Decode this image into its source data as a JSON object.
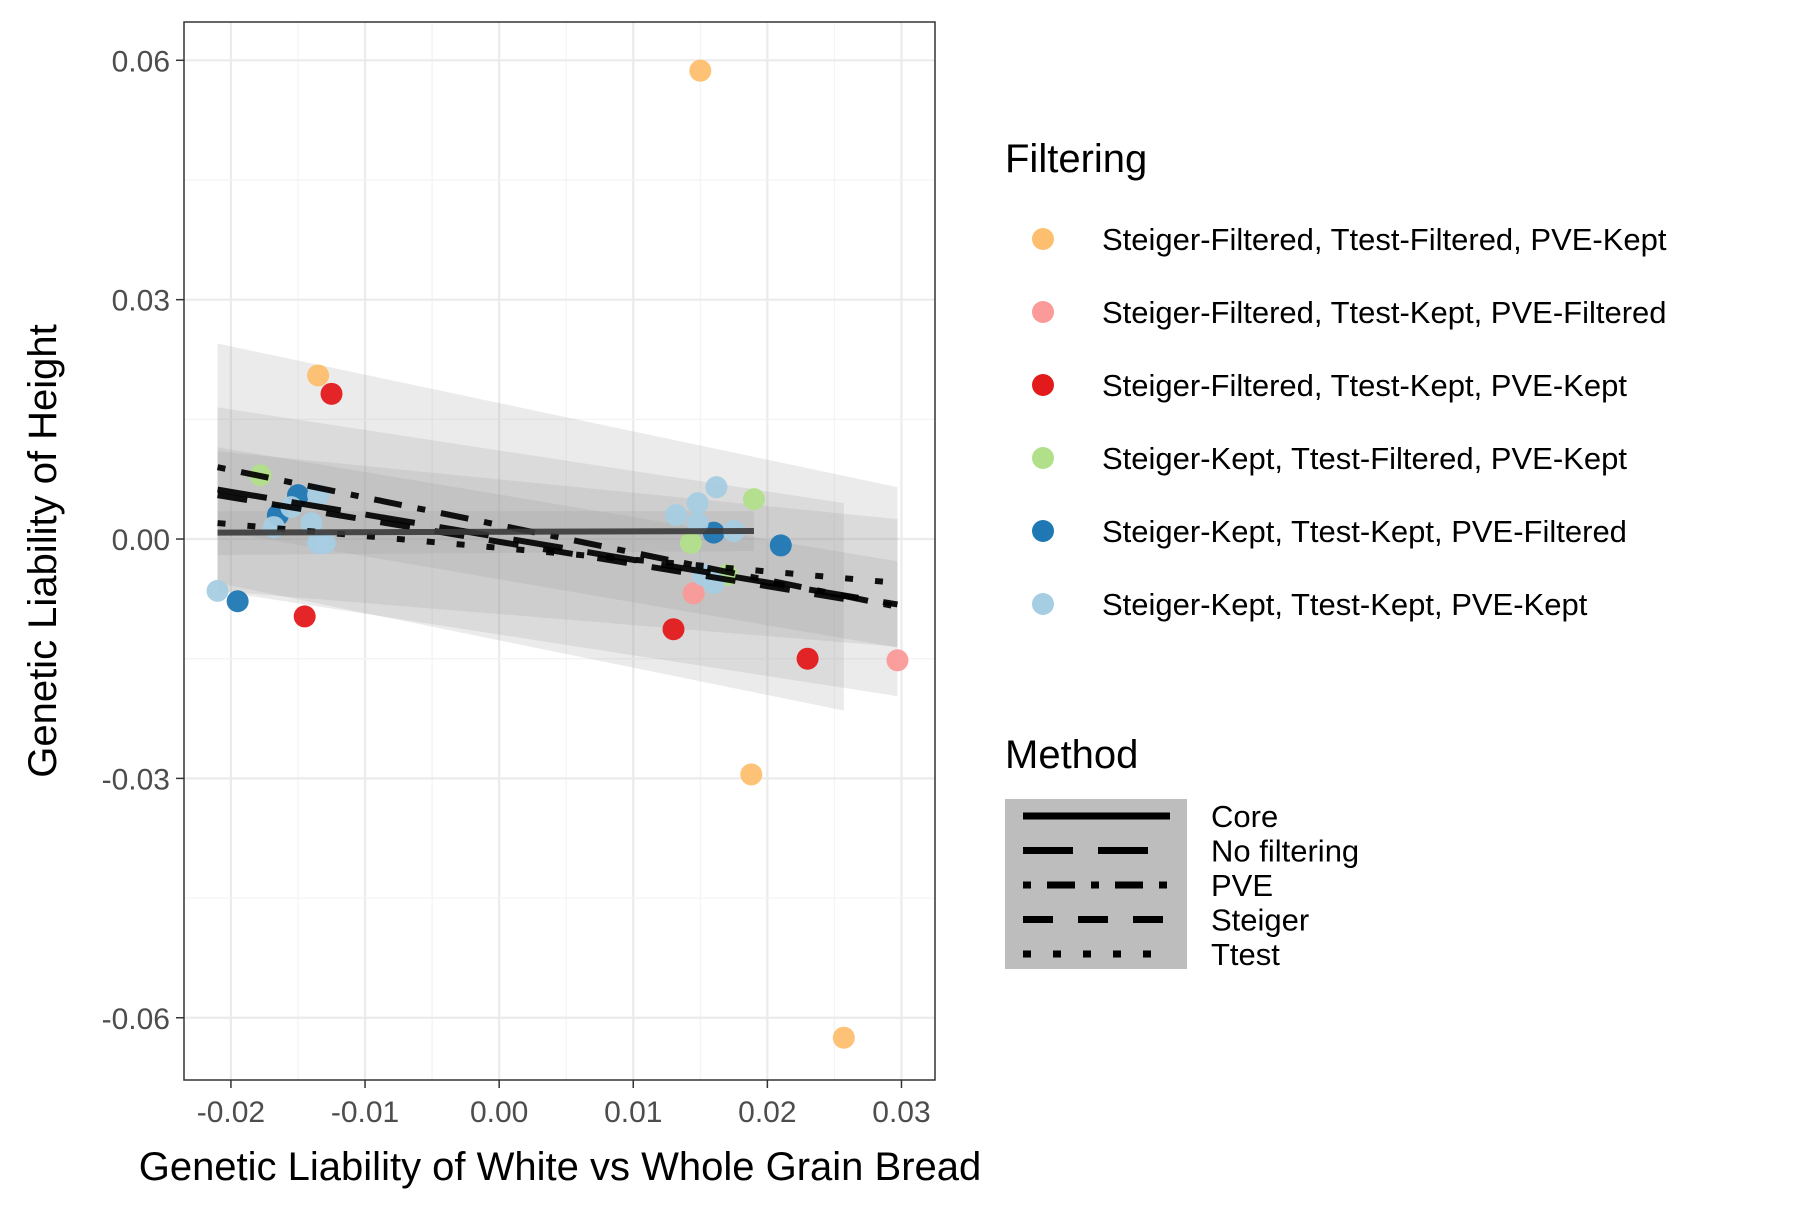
{
  "chart_data": {
    "type": "scatter",
    "xlabel": "Genetic Liability of White vs Whole Grain Bread",
    "ylabel": "Genetic Liability of Height",
    "xlim": [
      -0.0235,
      0.0325
    ],
    "ylim": [
      -0.0678,
      0.0648
    ],
    "x_ticks": [
      -0.02,
      -0.01,
      0.0,
      0.01,
      0.02,
      0.03
    ],
    "x_tick_labels": [
      "-0.02",
      "-0.01",
      "0.00",
      "0.01",
      "0.02",
      "0.03"
    ],
    "y_ticks": [
      -0.06,
      -0.03,
      0.0,
      0.03,
      0.06
    ],
    "y_tick_labels": [
      "-0.06",
      "-0.03",
      "0.00",
      "0.03",
      "0.06"
    ],
    "grid": true,
    "legend_position": "right",
    "filtering_legend": {
      "title": "Filtering",
      "entries": [
        {
          "label": "Steiger-Filtered, Ttest-Filtered, PVE-Kept",
          "color": "#FDBF6F"
        },
        {
          "label": "Steiger-Filtered, Ttest-Kept, PVE-Filtered",
          "color": "#FB9A99"
        },
        {
          "label": "Steiger-Filtered, Ttest-Kept, PVE-Kept",
          "color": "#E31A1C"
        },
        {
          "label": "Steiger-Kept, Ttest-Filtered, PVE-Kept",
          "color": "#B2DF8A"
        },
        {
          "label": "Steiger-Kept, Ttest-Kept, PVE-Filtered",
          "color": "#1F78B4"
        },
        {
          "label": "Steiger-Kept, Ttest-Kept, PVE-Kept",
          "color": "#A6CEE3"
        }
      ]
    },
    "method_legend": {
      "title": "Method",
      "entries": [
        {
          "label": "Core",
          "dash": "solid"
        },
        {
          "label": "No filtering",
          "dash": "longdash"
        },
        {
          "label": "PVE",
          "dash": "dotdash"
        },
        {
          "label": "Steiger",
          "dash": "dashed"
        },
        {
          "label": "Ttest",
          "dash": "dotted"
        }
      ]
    },
    "points": [
      {
        "x": 0.015,
        "y": 0.0587,
        "group": 0
      },
      {
        "x": -0.0135,
        "y": 0.0205,
        "group": 0
      },
      {
        "x": 0.0188,
        "y": -0.0295,
        "group": 0
      },
      {
        "x": 0.0257,
        "y": -0.0625,
        "group": 0
      },
      {
        "x": 0.0145,
        "y": -0.0068,
        "group": 1
      },
      {
        "x": 0.0297,
        "y": -0.0152,
        "group": 1
      },
      {
        "x": -0.0125,
        "y": 0.0182,
        "group": 2
      },
      {
        "x": -0.0145,
        "y": -0.0097,
        "group": 2
      },
      {
        "x": 0.013,
        "y": -0.0113,
        "group": 2
      },
      {
        "x": 0.023,
        "y": -0.015,
        "group": 2
      },
      {
        "x": -0.0178,
        "y": 0.008,
        "group": 3
      },
      {
        "x": 0.019,
        "y": 0.005,
        "group": 3
      },
      {
        "x": 0.0143,
        "y": -0.0005,
        "group": 3
      },
      {
        "x": 0.017,
        "y": -0.0045,
        "group": 3
      },
      {
        "x": -0.0195,
        "y": -0.0078,
        "group": 4
      },
      {
        "x": -0.015,
        "y": 0.0055,
        "group": 4
      },
      {
        "x": -0.0165,
        "y": 0.003,
        "group": 4
      },
      {
        "x": 0.021,
        "y": -0.0008,
        "group": 4
      },
      {
        "x": 0.016,
        "y": 0.0008,
        "group": 4
      },
      {
        "x": -0.021,
        "y": -0.0065,
        "group": 5
      },
      {
        "x": -0.0135,
        "y": 0.0055,
        "group": 5
      },
      {
        "x": -0.0155,
        "y": 0.004,
        "group": 5
      },
      {
        "x": -0.0168,
        "y": 0.0015,
        "group": 5
      },
      {
        "x": -0.014,
        "y": 0.002,
        "group": 5
      },
      {
        "x": -0.0135,
        "y": -0.0005,
        "group": 5
      },
      {
        "x": -0.013,
        "y": -0.0005,
        "group": 5
      },
      {
        "x": 0.0162,
        "y": 0.0065,
        "group": 5
      },
      {
        "x": 0.0148,
        "y": 0.0045,
        "group": 5
      },
      {
        "x": 0.0132,
        "y": 0.003,
        "group": 5
      },
      {
        "x": 0.0148,
        "y": 0.002,
        "group": 5
      },
      {
        "x": 0.0175,
        "y": 0.001,
        "group": 5
      },
      {
        "x": 0.0152,
        "y": -0.0045,
        "group": 5
      },
      {
        "x": 0.016,
        "y": -0.0055,
        "group": 5
      }
    ],
    "fit_lines": [
      {
        "method": "No filtering",
        "x": [
          -0.021,
          0.0297
        ],
        "y": [
          0.0062,
          -0.0082
        ],
        "band": [
          0.0115,
          0.001,
          -0.0028,
          -0.0136
        ]
      },
      {
        "method": "PVE",
        "x": [
          -0.021,
          0.0297
        ],
        "y": [
          0.009,
          -0.0085
        ],
        "band": [
          0.0245,
          -0.0065,
          0.0065,
          -0.0197
        ]
      },
      {
        "method": "Steiger",
        "x": [
          -0.021,
          0.0257
        ],
        "y": [
          0.0055,
          -0.0075
        ],
        "band": [
          0.0165,
          -0.0055,
          0.0045,
          -0.0215
        ]
      },
      {
        "method": "Ttest",
        "x": [
          -0.021,
          0.0297
        ],
        "y": [
          0.002,
          -0.0055
        ],
        "band": [
          0.011,
          -0.0065,
          0.0025,
          -0.0135
        ]
      },
      {
        "method": "Core",
        "x": [
          -0.021,
          0.019
        ],
        "y": [
          0.0008,
          0.001
        ],
        "band": [
          0.0035,
          -0.002,
          0.0035,
          -0.0015
        ]
      }
    ]
  }
}
